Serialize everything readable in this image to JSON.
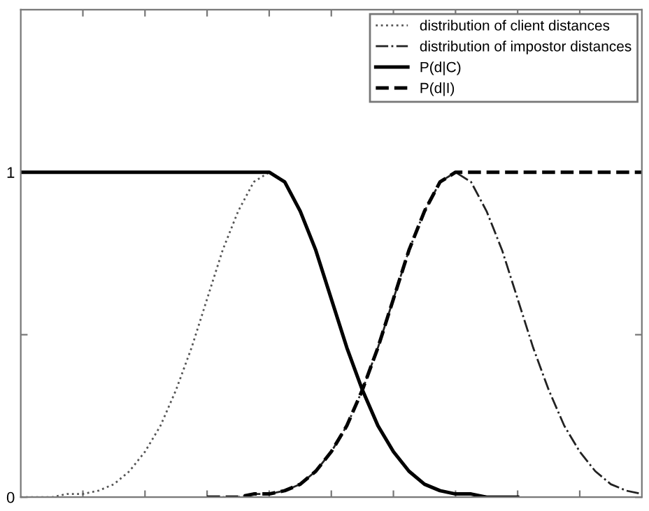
{
  "chart_data": {
    "type": "line",
    "categories": [
      null,
      null,
      null,
      null,
      null,
      null,
      null,
      null,
      null,
      null,
      null,
      null,
      null,
      null,
      null,
      null,
      null,
      null,
      null,
      null,
      null,
      null,
      null,
      null,
      null,
      null,
      null,
      null,
      null,
      null,
      null,
      null,
      null,
      null,
      null,
      null,
      null,
      null,
      null,
      null,
      null
    ],
    "series": [
      {
        "name": "distribution of client distances",
        "color": "#555555",
        "line_style": "dotted",
        "values": [
          0,
          0,
          0,
          0.01,
          0.01,
          0.02,
          0.04,
          0.08,
          0.14,
          0.22,
          0.33,
          0.46,
          0.61,
          0.76,
          0.88,
          0.97,
          1,
          null,
          null,
          null,
          null,
          null,
          null,
          null,
          null,
          null,
          null,
          null,
          null,
          null,
          null,
          null,
          null,
          null,
          null,
          null,
          null,
          null,
          null,
          null,
          null
        ]
      },
      {
        "name": "distribution of impostor distances",
        "color": "#222222",
        "line_style": "dashdot",
        "values": [
          null,
          null,
          null,
          null,
          null,
          null,
          null,
          null,
          null,
          null,
          null,
          null,
          0,
          0,
          0,
          0.01,
          0.01,
          0.02,
          0.04,
          0.08,
          0.14,
          0.22,
          0.33,
          0.46,
          0.61,
          0.76,
          0.88,
          0.97,
          1,
          0.97,
          0.88,
          0.76,
          0.61,
          0.46,
          0.33,
          0.22,
          0.14,
          0.08,
          0.04,
          0.02,
          0.01
        ]
      },
      {
        "name": "P(d|C)",
        "color": "#000000",
        "line_style": "solid",
        "values": [
          1,
          1,
          1,
          1,
          1,
          1,
          1,
          1,
          1,
          1,
          1,
          1,
          1,
          1,
          1,
          1,
          1,
          0.97,
          0.88,
          0.76,
          0.61,
          0.46,
          0.33,
          0.22,
          0.14,
          0.08,
          0.04,
          0.02,
          0.01,
          0.01,
          0,
          0,
          0,
          null,
          null,
          null,
          null,
          null,
          null,
          null,
          null
        ]
      },
      {
        "name": "P(d|I)",
        "color": "#000000",
        "line_style": "dashed",
        "values": [
          null,
          null,
          null,
          null,
          null,
          null,
          null,
          null,
          null,
          null,
          null,
          null,
          0,
          0,
          0,
          0.01,
          0.01,
          0.02,
          0.04,
          0.08,
          0.14,
          0.22,
          0.33,
          0.46,
          0.61,
          0.76,
          0.88,
          0.97,
          1,
          1,
          1,
          1,
          1,
          1,
          1,
          1,
          1,
          1,
          1,
          1,
          1
        ]
      }
    ],
    "ylim": [
      0,
      1.5
    ],
    "yticks": [
      0,
      {
        "value": 0.5,
        "label": null
      },
      1
    ],
    "grid": false,
    "legend": "top right"
  }
}
